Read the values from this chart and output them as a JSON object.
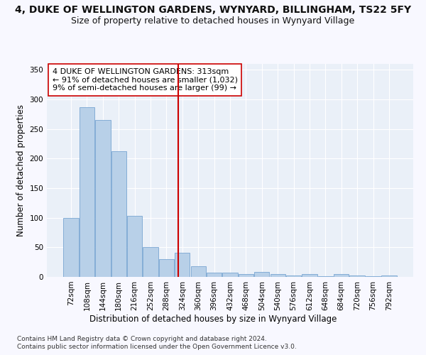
{
  "title": "4, DUKE OF WELLINGTON GARDENS, WYNYARD, BILLINGHAM, TS22 5FY",
  "subtitle": "Size of property relative to detached houses in Wynyard Village",
  "xlabel": "Distribution of detached houses by size in Wynyard Village",
  "ylabel": "Number of detached properties",
  "footer_line1": "Contains HM Land Registry data © Crown copyright and database right 2024.",
  "footer_line2": "Contains public sector information licensed under the Open Government Licence v3.0.",
  "bar_labels": [
    "72sqm",
    "108sqm",
    "144sqm",
    "180sqm",
    "216sqm",
    "252sqm",
    "288sqm",
    "324sqm",
    "360sqm",
    "396sqm",
    "432sqm",
    "468sqm",
    "504sqm",
    "540sqm",
    "576sqm",
    "612sqm",
    "648sqm",
    "684sqm",
    "720sqm",
    "756sqm",
    "792sqm"
  ],
  "bar_values": [
    100,
    287,
    265,
    212,
    103,
    51,
    30,
    41,
    18,
    7,
    7,
    5,
    8,
    5,
    3,
    5,
    1,
    5,
    2,
    1,
    3
  ],
  "bar_color": "#b8d0e8",
  "bar_edge_color": "#6699cc",
  "vline_color": "#cc0000",
  "vline_pos": 6.72,
  "annotation_title": "4 DUKE OF WELLINGTON GARDENS: 313sqm",
  "annotation_line1": "← 91% of detached houses are smaller (1,032)",
  "annotation_line2": "9% of semi-detached houses are larger (99) →",
  "ylim": [
    0,
    360
  ],
  "yticks": [
    0,
    50,
    100,
    150,
    200,
    250,
    300,
    350
  ],
  "fig_bg_color": "#f8f8ff",
  "plot_bg_color": "#eaf0f8",
  "title_fontsize": 10,
  "subtitle_fontsize": 9,
  "axis_label_fontsize": 8.5,
  "tick_fontsize": 7.5,
  "annotation_fontsize": 8,
  "footer_fontsize": 6.5
}
